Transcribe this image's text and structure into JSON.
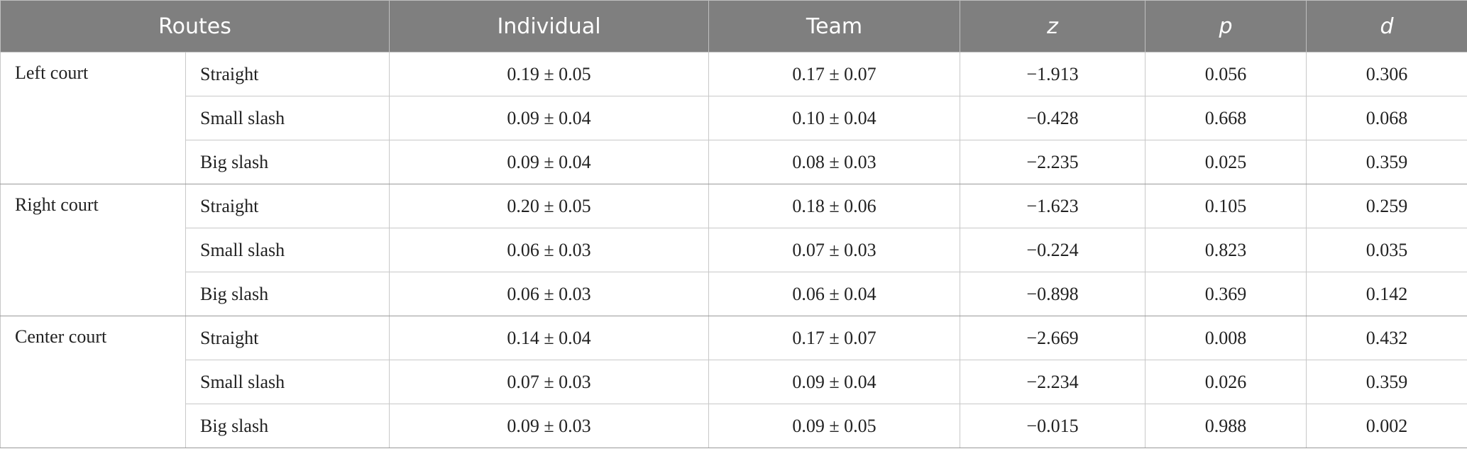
{
  "table": {
    "header": [
      "Routes",
      "Individual",
      "Team",
      "z",
      "p",
      "d"
    ],
    "groups": [
      {
        "label": "Left court",
        "rows": [
          [
            "Straight",
            "0.19 ± 0.05",
            "0.17 ± 0.07",
            "−1.913",
            "0.056",
            "0.306"
          ],
          [
            "Small slash",
            "0.09 ± 0.04",
            "0.10 ± 0.04",
            "−0.428",
            "0.668",
            "0.068"
          ],
          [
            "Big slash",
            "0.09 ± 0.04",
            "0.08 ± 0.03",
            "−2.235",
            "0.025",
            "0.359"
          ]
        ]
      },
      {
        "label": "Right court",
        "rows": [
          [
            "Straight",
            "0.20 ± 0.05",
            "0.18 ± 0.06",
            "−1.623",
            "0.105",
            "0.259"
          ],
          [
            "Small slash",
            "0.06 ± 0.03",
            "0.07 ± 0.03",
            "−0.224",
            "0.823",
            "0.035"
          ],
          [
            "Big slash",
            "0.06 ± 0.03",
            "0.06 ± 0.04",
            "−0.898",
            "0.369",
            "0.142"
          ]
        ]
      },
      {
        "label": "Center court",
        "rows": [
          [
            "Straight",
            "0.14 ± 0.04",
            "0.17 ± 0.07",
            "−2.669",
            "0.008",
            "0.432"
          ],
          [
            "Small slash",
            "0.07 ± 0.03",
            "0.09 ± 0.04",
            "−2.234",
            "0.026",
            "0.359"
          ],
          [
            "Big slash",
            "0.09 ± 0.03",
            "0.09 ± 0.05",
            "−0.015",
            "0.988",
            "0.002"
          ]
        ]
      }
    ]
  }
}
